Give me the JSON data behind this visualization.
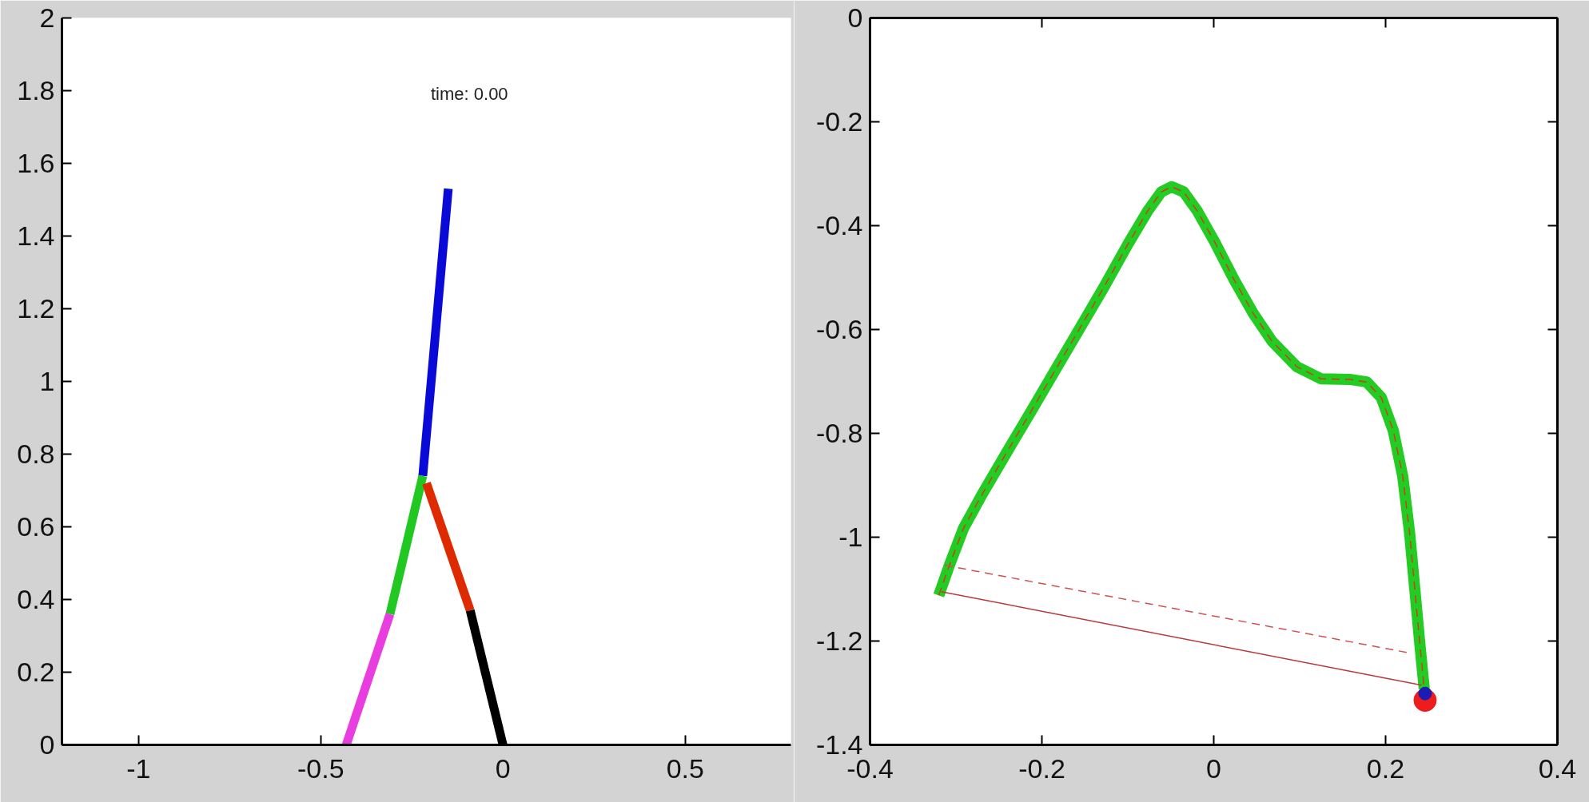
{
  "chart_data": [
    {
      "type": "line",
      "annotations": [
        "time: 0.00"
      ],
      "xlim": [
        -1.21,
        0.79
      ],
      "ylim": [
        0,
        2
      ],
      "xticks": [
        -1,
        -0.5,
        0,
        0.5
      ],
      "yticks": [
        0,
        0.2,
        0.4,
        0.6,
        0.8,
        1,
        1.2,
        1.4,
        1.6,
        1.8,
        2
      ],
      "series": [
        {
          "color": "#0a0ad8",
          "x": [
            -0.22,
            -0.15
          ],
          "values": [
            0.74,
            1.53
          ]
        },
        {
          "color": "#22c822",
          "x": [
            -0.22,
            -0.31
          ],
          "values": [
            0.74,
            0.36
          ]
        },
        {
          "color": "#e83ee0",
          "x": [
            -0.31,
            -0.43
          ],
          "values": [
            0.36,
            0
          ]
        },
        {
          "color": "#dd2a00",
          "x": [
            -0.21,
            -0.09
          ],
          "values": [
            0.72,
            0.37
          ]
        },
        {
          "color": "#000000",
          "x": [
            -0.09,
            0
          ],
          "values": [
            0.37,
            0
          ]
        }
      ]
    },
    {
      "type": "line",
      "xlim": [
        -0.4,
        0.4
      ],
      "ylim": [
        -1.4,
        0
      ],
      "xticks": [
        -0.4,
        -0.2,
        0,
        0.2,
        0.4
      ],
      "yticks": [
        0,
        -0.2,
        -0.4,
        -0.6,
        -0.8,
        -1,
        -1.2,
        -1.4
      ],
      "series": [
        {
          "color": "#22cc22",
          "x": [
            -0.32,
            -0.307,
            -0.291,
            -0.268,
            -0.24,
            -0.212,
            -0.184,
            -0.156,
            -0.128,
            -0.1,
            -0.077,
            -0.061,
            -0.049,
            -0.035,
            -0.019,
            0.001,
            0.024,
            0.046,
            0.068,
            0.097,
            0.125,
            0.158,
            0.178,
            0.195,
            0.209,
            0.22,
            0.228,
            0.234,
            0.24,
            0.245
          ],
          "values": [
            -1.112,
            -1.051,
            -0.982,
            -0.913,
            -0.834,
            -0.756,
            -0.677,
            -0.598,
            -0.519,
            -0.436,
            -0.372,
            -0.335,
            -0.325,
            -0.335,
            -0.372,
            -0.431,
            -0.505,
            -0.569,
            -0.623,
            -0.672,
            -0.695,
            -0.696,
            -0.701,
            -0.731,
            -0.795,
            -0.883,
            -0.992,
            -1.1,
            -1.208,
            -1.292
          ]
        },
        {
          "color": "#d23c1e",
          "line_style": "dashed",
          "x": [
            -0.32,
            -0.307,
            -0.291,
            -0.268,
            -0.24,
            -0.212,
            -0.184,
            -0.156,
            -0.128,
            -0.1,
            -0.077,
            -0.061,
            -0.049,
            -0.035,
            -0.019,
            0.001,
            0.024,
            0.046,
            0.068,
            0.097,
            0.125,
            0.158,
            0.178,
            0.195,
            0.209,
            0.22,
            0.228,
            0.234,
            0.24,
            0.245
          ],
          "values": [
            -1.112,
            -1.051,
            -0.982,
            -0.913,
            -0.834,
            -0.756,
            -0.677,
            -0.598,
            -0.519,
            -0.436,
            -0.372,
            -0.335,
            -0.325,
            -0.335,
            -0.372,
            -0.431,
            -0.505,
            -0.569,
            -0.623,
            -0.672,
            -0.695,
            -0.696,
            -0.701,
            -0.731,
            -0.795,
            -0.883,
            -0.992,
            -1.1,
            -1.208,
            -1.292
          ]
        },
        {
          "color": "#d05050",
          "line_style": "dashed",
          "x": [
            -0.313,
            0.228
          ],
          "values": [
            -1.054,
            -1.223
          ]
        },
        {
          "color": "#b83a3a",
          "x": [
            -0.317,
            0.242
          ],
          "values": [
            -1.105,
            -1.285
          ]
        },
        {
          "type": "scatter",
          "marker": "circle",
          "color": "#ee1c1c",
          "x": [
            0.246
          ],
          "values": [
            -1.314
          ]
        },
        {
          "type": "scatter",
          "marker": "circle",
          "color": "#1c1cb4",
          "x": [
            0.246
          ],
          "values": [
            -1.301
          ]
        }
      ]
    }
  ]
}
